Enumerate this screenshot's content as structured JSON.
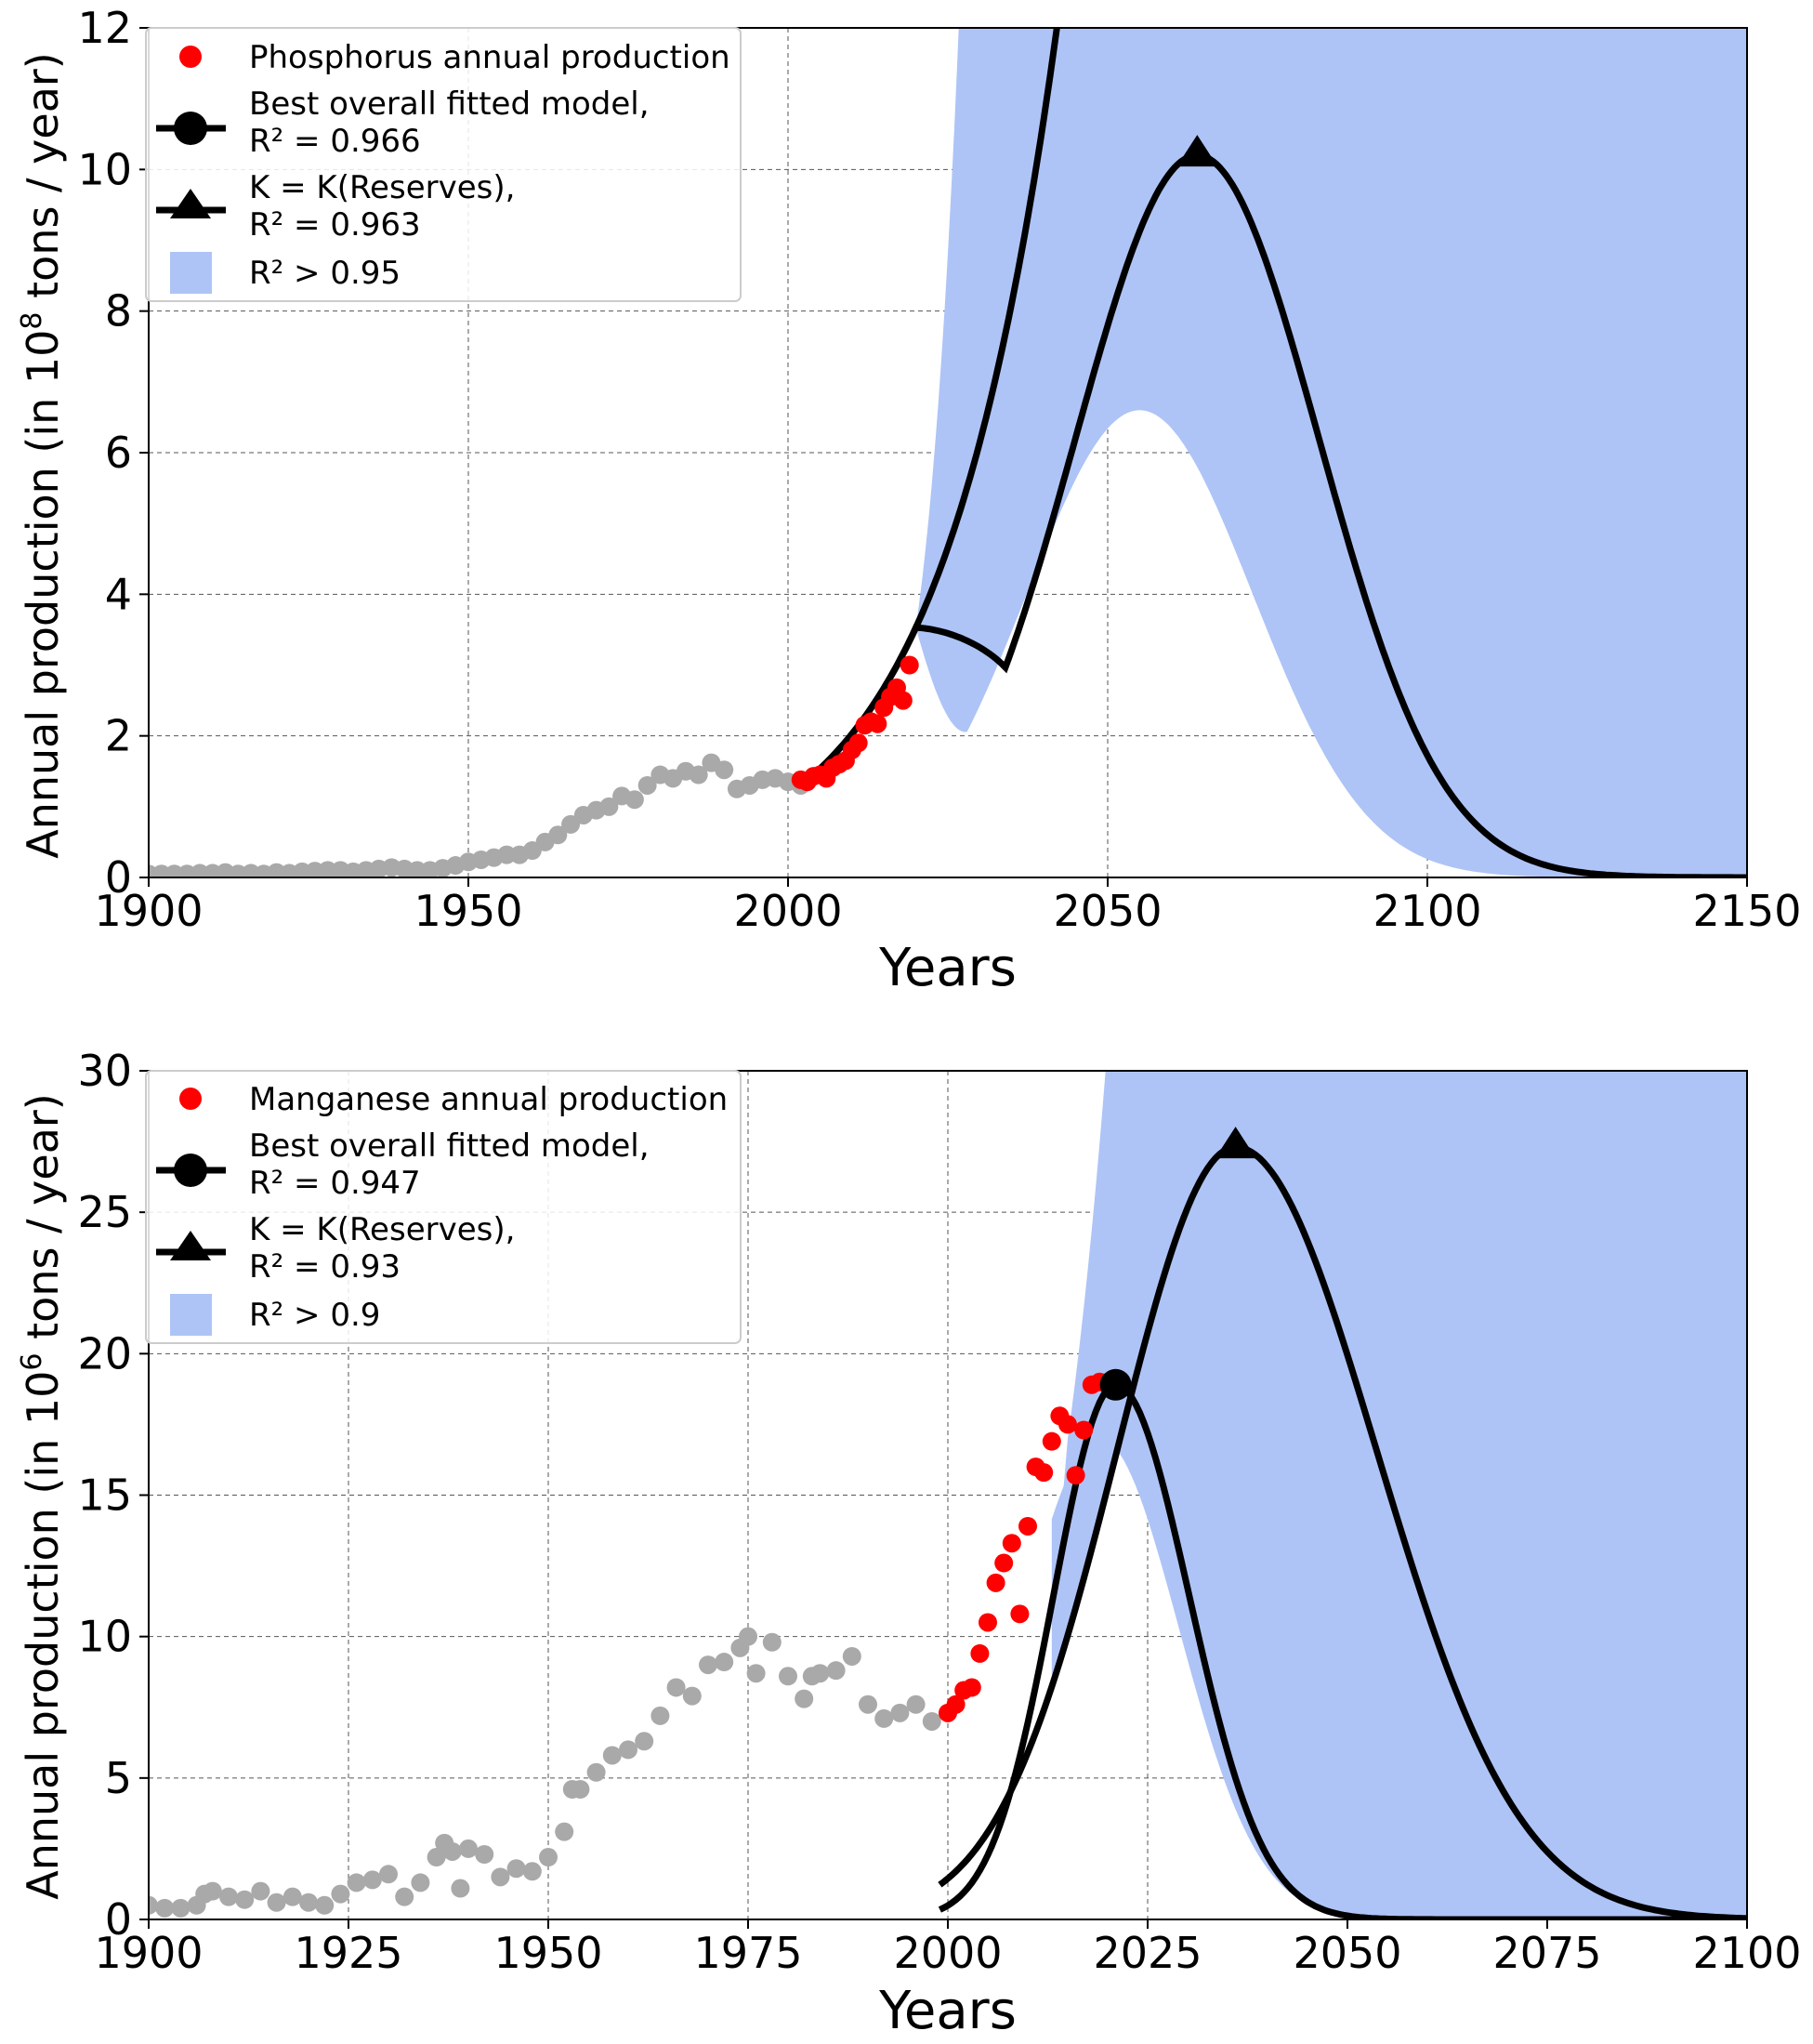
{
  "chart_data": [
    {
      "type": "line",
      "id": "phosphorus",
      "xlabel": "Years",
      "ylabel_parts": [
        "Annual production (in 10",
        "8",
        " tons / year)"
      ],
      "xlim": [
        1900,
        2150
      ],
      "ylim": [
        0,
        12
      ],
      "xticks": [
        1900,
        1950,
        2000,
        2050,
        2100,
        2150
      ],
      "yticks": [
        0,
        2,
        4,
        6,
        8,
        10,
        12
      ],
      "grid": true,
      "legend_position": "top-left",
      "legend": [
        {
          "kind": "dot",
          "line1": "Phosphorus annual production",
          "line2": ""
        },
        {
          "kind": "circle",
          "line1": "Best overall fitted model,",
          "line2": " R² = 0.966"
        },
        {
          "kind": "triangle",
          "line1": "K = K(Reserves),",
          "line2": " R² = 0.963"
        },
        {
          "kind": "band",
          "line1": "R² > 0.95",
          "line2": ""
        }
      ],
      "colors": {
        "data": "#ff0000",
        "history": "#a9a9a9",
        "model": "#000000",
        "band": "#aec4f6"
      },
      "historical": {
        "x": [
          1900,
          1902,
          1904,
          1906,
          1908,
          1910,
          1912,
          1914,
          1916,
          1918,
          1920,
          1922,
          1924,
          1926,
          1928,
          1930,
          1932,
          1934,
          1936,
          1938,
          1940,
          1942,
          1944,
          1946,
          1948,
          1950,
          1952,
          1954,
          1956,
          1958,
          1960,
          1962,
          1964,
          1966,
          1968,
          1970,
          1972,
          1974,
          1976,
          1978,
          1980,
          1982,
          1984,
          1986,
          1988,
          1990,
          1992,
          1994,
          1996,
          1998,
          2000,
          2002
        ],
        "y": [
          0.05,
          0.05,
          0.05,
          0.05,
          0.06,
          0.06,
          0.07,
          0.05,
          0.06,
          0.05,
          0.07,
          0.06,
          0.08,
          0.09,
          0.1,
          0.1,
          0.08,
          0.1,
          0.12,
          0.14,
          0.12,
          0.1,
          0.1,
          0.13,
          0.17,
          0.22,
          0.25,
          0.28,
          0.32,
          0.32,
          0.38,
          0.5,
          0.6,
          0.75,
          0.88,
          0.95,
          1.0,
          1.15,
          1.1,
          1.3,
          1.45,
          1.4,
          1.5,
          1.45,
          1.62,
          1.52,
          1.25,
          1.3,
          1.38,
          1.4,
          1.35,
          1.3
        ]
      },
      "observed": {
        "x": [
          2002,
          2003,
          2004,
          2005,
          2006,
          2007,
          2008,
          2009,
          2010,
          2011,
          2012,
          2013,
          2014,
          2015,
          2016,
          2017,
          2018,
          2019
        ],
        "y": [
          1.38,
          1.35,
          1.43,
          1.45,
          1.4,
          1.55,
          1.6,
          1.65,
          1.8,
          1.9,
          2.15,
          2.2,
          2.17,
          2.4,
          2.55,
          2.68,
          2.5,
          3.0
        ]
      },
      "best_model": {
        "x0": 2002,
        "y0": 1.3,
        "growth": 0.0555,
        "cutoff": 12
      },
      "reserves_model": {
        "peak_year": 2064,
        "peak_value": 10.2,
        "width": 27,
        "x0": 2002
      },
      "band": {
        "upper": {
          "x0": 2002,
          "y0": 1.3,
          "growth": 0.1
        },
        "lower": {
          "peak_year": 2055,
          "peak_value": 6.6,
          "width": 25
        }
      },
      "markers": {
        "triangle": {
          "x": 2064,
          "y": 10.2
        }
      }
    },
    {
      "type": "line",
      "id": "manganese",
      "xlabel": "Years",
      "ylabel_parts": [
        "Annual production (in 10",
        "6",
        " tons / year)"
      ],
      "xlim": [
        1900,
        2100
      ],
      "ylim": [
        0,
        30
      ],
      "xticks": [
        1900,
        1925,
        1950,
        1975,
        2000,
        2025,
        2050,
        2075,
        2100
      ],
      "yticks": [
        0,
        5,
        10,
        15,
        20,
        25,
        30
      ],
      "grid": true,
      "legend_position": "top-left",
      "legend": [
        {
          "kind": "dot",
          "line1": "Manganese annual production",
          "line2": ""
        },
        {
          "kind": "circle",
          "line1": "Best overall fitted model,",
          "line2": " R² = 0.947"
        },
        {
          "kind": "triangle",
          "line1": "K = K(Reserves),",
          "line2": " R² = 0.93"
        },
        {
          "kind": "band",
          "line1": "R² > 0.9",
          "line2": ""
        }
      ],
      "colors": {
        "data": "#ff0000",
        "history": "#a9a9a9",
        "model": "#000000",
        "band": "#aec4f6"
      },
      "historical": {
        "x": [
          1900,
          1902,
          1904,
          1906,
          1907,
          1908,
          1910,
          1912,
          1914,
          1916,
          1918,
          1920,
          1922,
          1924,
          1926,
          1928,
          1930,
          1932,
          1934,
          1936,
          1937,
          1938,
          1939,
          1940,
          1942,
          1944,
          1946,
          1948,
          1950,
          1952,
          1953,
          1954,
          1956,
          1958,
          1960,
          1962,
          1964,
          1966,
          1968,
          1970,
          1972,
          1974,
          1975,
          1976,
          1978,
          1980,
          1982,
          1983,
          1984,
          1986,
          1988,
          1990,
          1992,
          1994,
          1996,
          1998
        ],
        "y": [
          0.5,
          0.4,
          0.4,
          0.5,
          0.9,
          1.0,
          0.8,
          0.7,
          1.0,
          0.6,
          0.8,
          0.6,
          0.5,
          0.9,
          1.3,
          1.4,
          1.6,
          0.8,
          1.3,
          2.2,
          2.7,
          2.4,
          1.1,
          2.5,
          2.3,
          1.5,
          1.8,
          1.7,
          2.2,
          3.1,
          4.6,
          4.6,
          5.2,
          5.8,
          6.0,
          6.3,
          7.2,
          8.2,
          7.9,
          9.0,
          9.1,
          9.6,
          10.0,
          8.7,
          9.8,
          8.6,
          7.8,
          8.6,
          8.7,
          8.8,
          9.3,
          7.6,
          7.1,
          7.3,
          7.6,
          7.0
        ]
      },
      "observed": {
        "x": [
          2000,
          2001,
          2002,
          2003,
          2004,
          2005,
          2006,
          2007,
          2008,
          2009,
          2010,
          2011,
          2012,
          2013,
          2014,
          2015,
          2016,
          2017,
          2018,
          2019
        ],
        "y": [
          7.3,
          7.6,
          8.1,
          8.2,
          9.4,
          10.5,
          11.9,
          12.6,
          13.3,
          10.8,
          13.9,
          16.0,
          15.8,
          16.9,
          17.8,
          17.5,
          15.7,
          17.3,
          18.9,
          19.0
        ]
      },
      "best_model": {
        "peak_year": 2021,
        "peak_value": 18.9,
        "width_left": 11,
        "width_right": 13,
        "x0": 1999
      },
      "reserves_model": {
        "peak_year": 2036,
        "peak_value": 27.3,
        "width_left": 21,
        "width_right": 25,
        "x0": 1999
      },
      "band": {
        "upper": {
          "x0": 2015,
          "y0": 17.0,
          "growth": 0.12
        },
        "lower": {
          "peak_year": 2019,
          "peak_value": 17.0,
          "width": 14
        },
        "x0": 2013
      },
      "markers": {
        "circle": {
          "x": 2021,
          "y": 18.9
        },
        "triangle": {
          "x": 2036,
          "y": 27.3
        }
      }
    }
  ]
}
